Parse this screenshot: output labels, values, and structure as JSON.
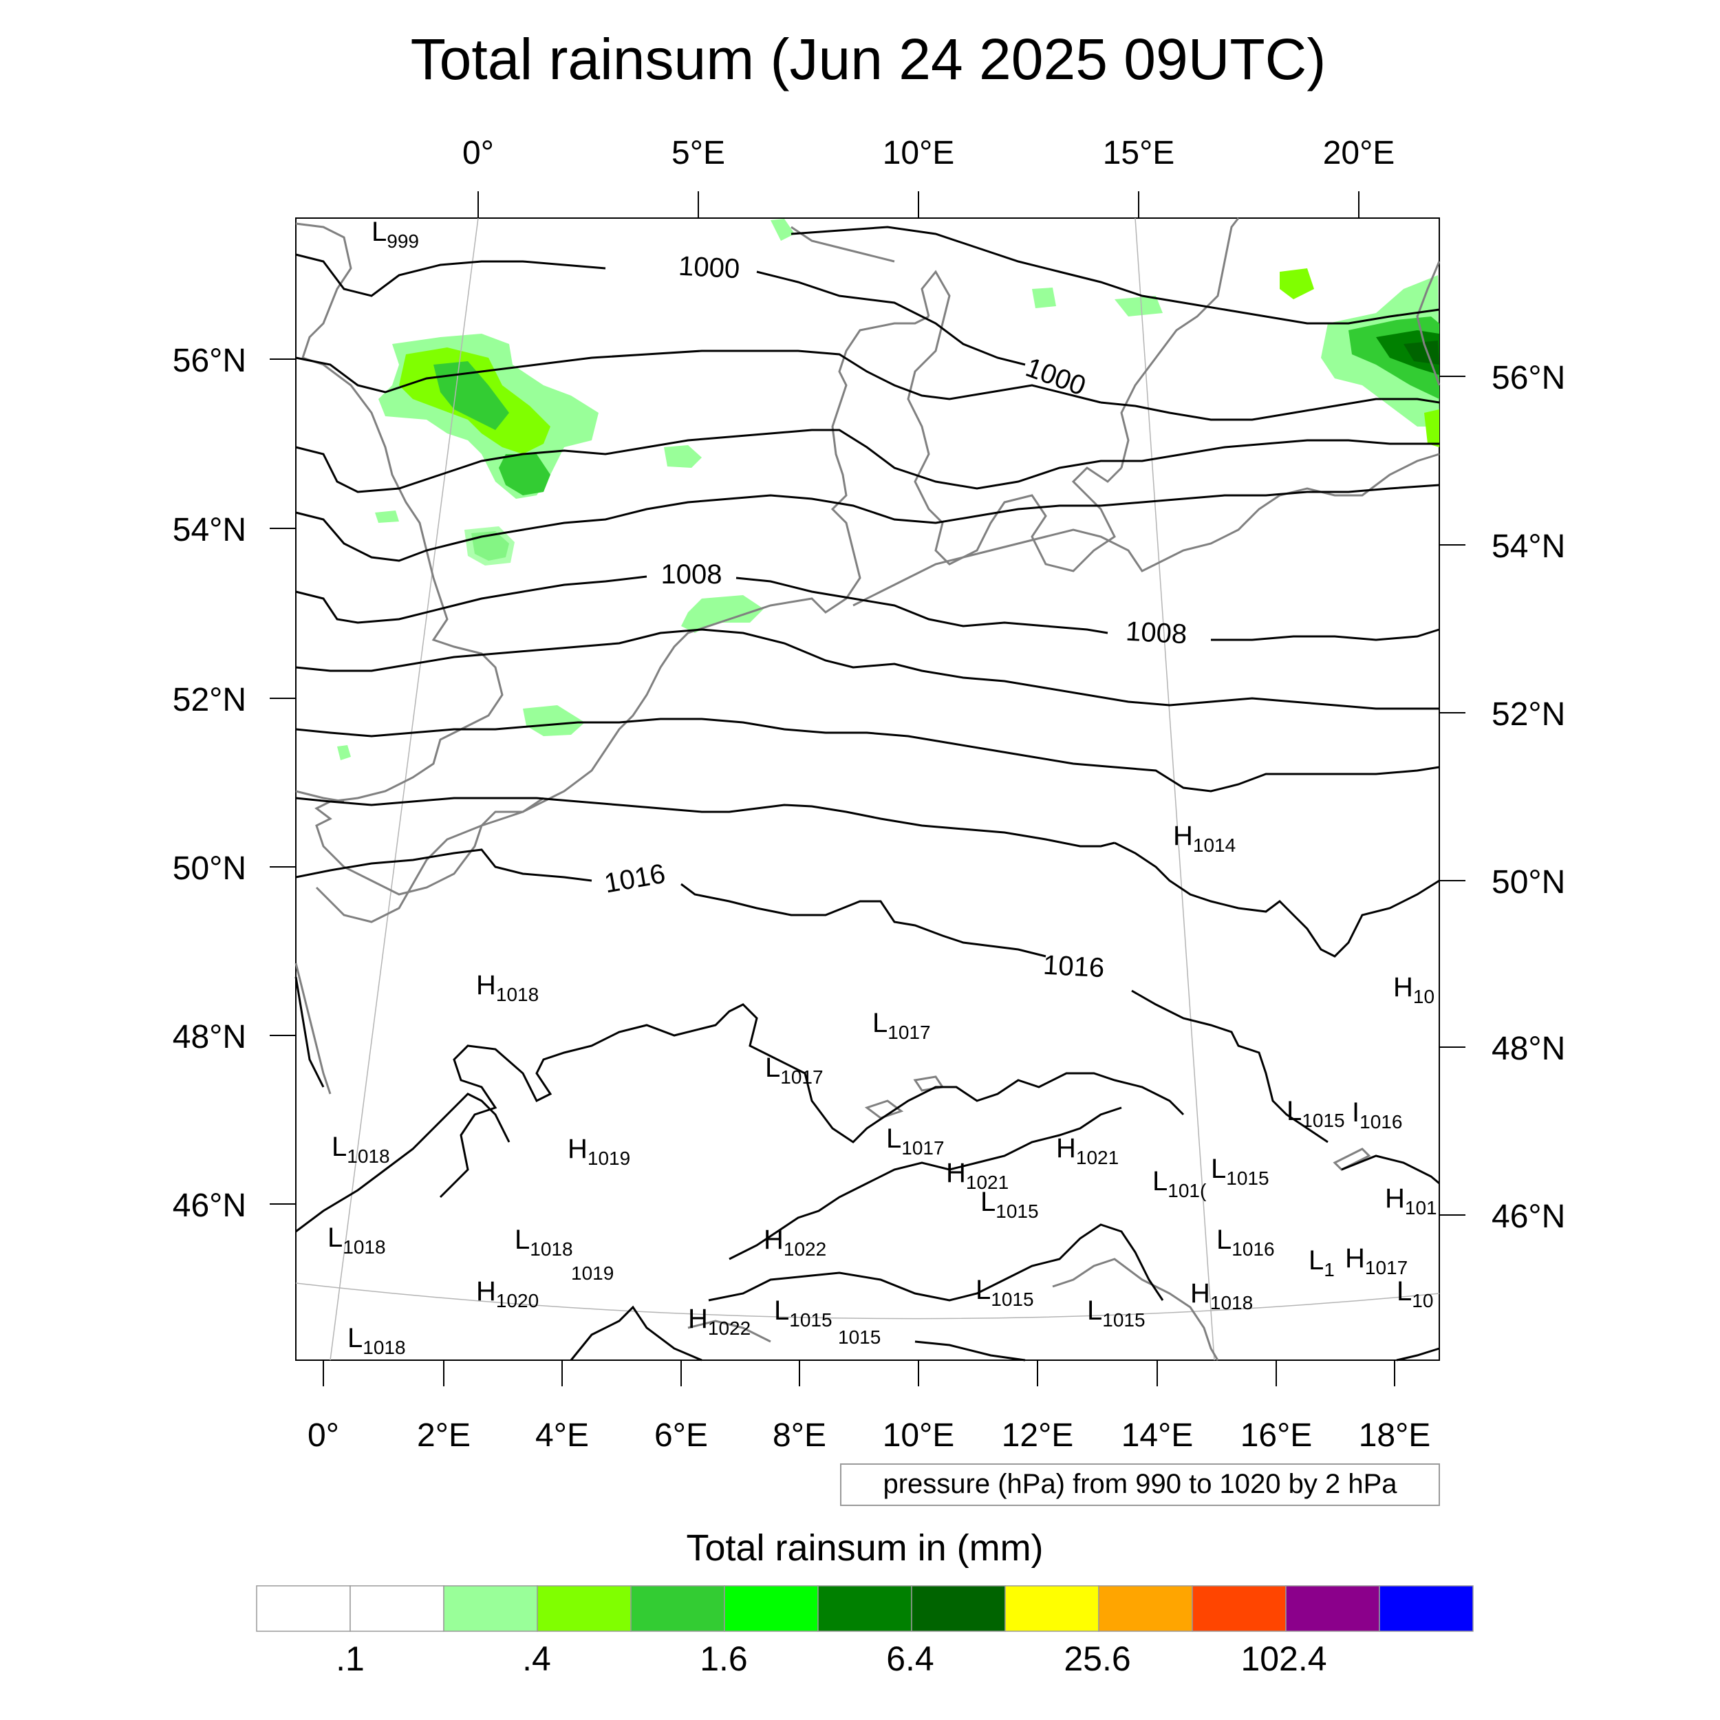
{
  "title": "Total rainsum (Jun 24 2025 09UTC)",
  "top_lon_labels": [
    "0°",
    "5°E",
    "10°E",
    "15°E",
    "20°E"
  ],
  "left_lat_labels": [
    "56°N",
    "54°N",
    "52°N",
    "50°N",
    "48°N",
    "46°N"
  ],
  "right_lat_labels": [
    "56°N",
    "54°N",
    "52°N",
    "50°N",
    "48°N",
    "46°N"
  ],
  "bottom_lon_labels": [
    "0°",
    "2°E",
    "4°E",
    "6°E",
    "8°E",
    "10°E",
    "12°E",
    "14°E",
    "16°E",
    "18°E"
  ],
  "isobar_labels": [
    "1000",
    "1000",
    "1008",
    "1008",
    "1016",
    "1016"
  ],
  "pressure_centers": [
    {
      "letter": "L",
      "value": "999"
    },
    {
      "letter": "H",
      "value": "1014"
    },
    {
      "letter": "H",
      "value": "1018"
    },
    {
      "letter": "L",
      "value": "1017"
    },
    {
      "letter": "H",
      "value": "10"
    },
    {
      "letter": "L",
      "value": "1017"
    },
    {
      "letter": "L",
      "value": "1018"
    },
    {
      "letter": "H",
      "value": "1019"
    },
    {
      "letter": "L",
      "value": "1017"
    },
    {
      "letter": "H",
      "value": "1021"
    },
    {
      "letter": "L",
      "value": "1015"
    },
    {
      "letter": "I",
      "value": "1016"
    },
    {
      "letter": "H",
      "value": "1021"
    },
    {
      "letter": "L",
      "value": "1015"
    },
    {
      "letter": "L",
      "value": "1015"
    },
    {
      "letter": "L",
      "value": "101("
    },
    {
      "letter": "H",
      "value": "101"
    },
    {
      "letter": "L",
      "value": "1018"
    },
    {
      "letter": "L",
      "value": "1018"
    },
    {
      "letter": "",
      "value": "1019"
    },
    {
      "letter": "H",
      "value": "1022"
    },
    {
      "letter": "L",
      "value": "1016"
    },
    {
      "letter": "L",
      "value": "1"
    },
    {
      "letter": "H",
      "value": "1017"
    },
    {
      "letter": "H",
      "value": "1020"
    },
    {
      "letter": "H",
      "value": "1022"
    },
    {
      "letter": "L",
      "value": "1015"
    },
    {
      "letter": "",
      "value": "1015"
    },
    {
      "letter": "L",
      "value": "1015"
    },
    {
      "letter": "L",
      "value": "1015"
    },
    {
      "letter": "H",
      "value": "1018"
    },
    {
      "letter": "L",
      "value": "10"
    },
    {
      "letter": "L",
      "value": "1018"
    }
  ],
  "contour_info": "pressure (hPa) from 990 to 1020 by 2 hPa",
  "colorbar": {
    "title": "Total rainsum in (mm)",
    "colors": [
      "#ffffff",
      "#ffffff",
      "#99ff99",
      "#80ff00",
      "#33cc33",
      "#00ff00",
      "#008000",
      "#006400",
      "#ffff00",
      "#ffa500",
      "#ff4500",
      "#8b008b",
      "#0000ff"
    ],
    "tick_labels": [
      ".1",
      ".4",
      "1.6",
      "6.4",
      "25.6",
      "102.4"
    ]
  },
  "colors": {
    "isobar": "#000000",
    "coastline": "#808080",
    "graticule": "#b4b4b4"
  }
}
